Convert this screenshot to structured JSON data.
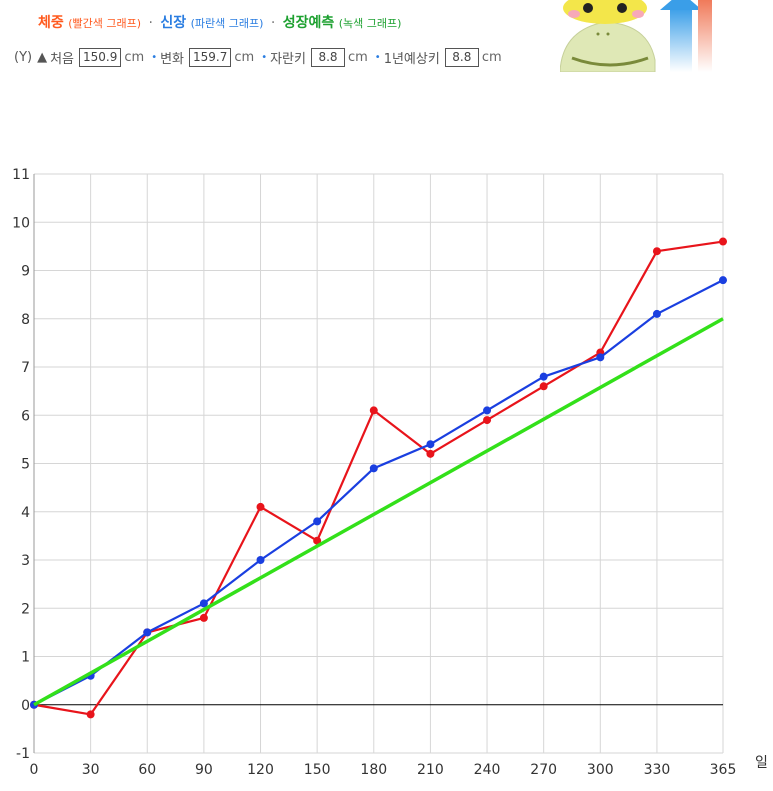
{
  "header": {
    "weight_title": "체중",
    "weight_note": "(빨간색 그래프)",
    "height_title": "신장",
    "height_note": "(파란색 그래프)",
    "predict_title": "성장예측",
    "predict_note": "(녹색 그래프)",
    "sep1": "·",
    "sep2": "·"
  },
  "values": {
    "y_marker": "(Y)",
    "start_label": "처음",
    "start_value": "150.9",
    "start_unit": "cm",
    "change_label": "변화",
    "change_value": "159.7",
    "change_unit": "cm",
    "grown_label": "자란키",
    "grown_value": "8.8",
    "grown_unit": "cm",
    "predict_label": "1년예상키",
    "predict_value": "8.8",
    "predict_unit": "cm"
  },
  "colors": {
    "weight": "#e8141b",
    "height": "#1a3fe0",
    "predict": "#33e01a",
    "grid": "#d6d6d6",
    "zero_line": "#000000"
  },
  "chart_data": {
    "type": "line",
    "x": [
      0,
      30,
      60,
      90,
      120,
      150,
      180,
      210,
      240,
      270,
      300,
      330,
      365
    ],
    "x_ticks": [
      "0",
      "30",
      "60",
      "90",
      "120",
      "150",
      "180",
      "210",
      "240",
      "270",
      "300",
      "330",
      "365"
    ],
    "y_ticks": [
      "-1",
      "0",
      "1",
      "2",
      "3",
      "4",
      "5",
      "6",
      "7",
      "8",
      "9",
      "10",
      "11"
    ],
    "ylim": [
      -1,
      11
    ],
    "xlim": [
      0,
      365
    ],
    "xlabel": "일",
    "ylabel": "",
    "grid": true,
    "series": [
      {
        "key": "weight",
        "values": [
          0,
          -0.2,
          1.5,
          1.8,
          4.1,
          3.4,
          6.1,
          5.2,
          5.9,
          6.6,
          7.3,
          9.4,
          9.6
        ]
      },
      {
        "key": "height",
        "values": [
          0,
          0.6,
          1.5,
          2.1,
          3.0,
          3.8,
          4.9,
          5.4,
          6.1,
          6.8,
          7.2,
          8.1,
          8.8
        ]
      },
      {
        "key": "predict",
        "x": [
          0,
          365
        ],
        "values": [
          0,
          8.0
        ]
      }
    ]
  }
}
